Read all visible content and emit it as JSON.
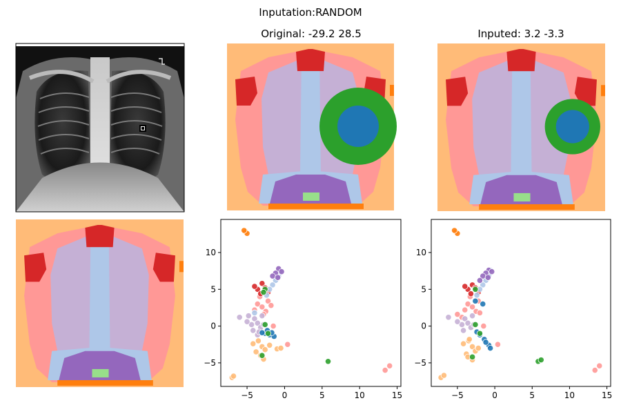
{
  "figure": {
    "suptitle": "Inputation:RANDOM",
    "titles": {
      "xray": "",
      "original": "Original: -29.2 28.5",
      "imputed": "Inputed: 3.2 -3.3",
      "segmentation": ""
    }
  },
  "colors": {
    "bg_peach": "#ffbb78",
    "pink": "#ff9896",
    "red": "#d62728",
    "lavender": "#c5b0d5",
    "lightblue": "#aec7e8",
    "purple": "#9467bd",
    "lightgreen": "#98df8a",
    "orange": "#ff7f0e",
    "green": "#2ca02c",
    "blue": "#1f77b4"
  },
  "chart_data": [
    {
      "type": "heatmap",
      "title": "Original: -29.2 28.5",
      "description_label": "segmentation map with highlighted regions",
      "blob_center_data": [
        -29.2,
        28.5
      ]
    },
    {
      "type": "heatmap",
      "title": "Inputed: 3.2 -3.3",
      "blob_center_data": [
        3.2,
        -3.3
      ]
    },
    {
      "type": "scatter",
      "panel": "original",
      "xticks": [
        -5,
        0,
        5,
        10,
        15
      ],
      "yticks": [
        -5,
        0,
        5,
        10
      ],
      "xlim": [
        -8.5,
        15.5
      ],
      "ylim": [
        -8.2,
        14.5
      ],
      "series": [
        {
          "name": "orange",
          "color": "#ff7f0e",
          "points": [
            [
              -5.2,
              12.8
            ],
            [
              -5.0,
              12.6
            ],
            [
              -5.4,
              13.0
            ]
          ]
        },
        {
          "name": "peach",
          "color": "#ffbb78",
          "points": [
            [
              -7.0,
              -7.0
            ],
            [
              -6.8,
              -6.8
            ],
            [
              -3.5,
              -2.0
            ],
            [
              -3.0,
              -2.8
            ],
            [
              -2.6,
              -3.2
            ],
            [
              -3.8,
              -3.5
            ],
            [
              -3.2,
              -4.0
            ],
            [
              -1.0,
              -3.1
            ],
            [
              -0.5,
              -3.0
            ],
            [
              -2.8,
              -4.5
            ],
            [
              -4.2,
              -2.4
            ],
            [
              -2.0,
              -2.6
            ]
          ]
        },
        {
          "name": "pink",
          "color": "#ff9896",
          "points": [
            [
              -3.6,
              3.0
            ],
            [
              -3.0,
              2.6
            ],
            [
              -2.5,
              2.0
            ],
            [
              -4.0,
              2.2
            ],
            [
              -2.2,
              3.4
            ],
            [
              -3.3,
              4.0
            ],
            [
              -1.8,
              2.8
            ],
            [
              -2.8,
              1.6
            ],
            [
              13.4,
              -6.0
            ],
            [
              14.0,
              -5.4
            ],
            [
              0.4,
              -2.5
            ],
            [
              -3.5,
              -1.0
            ],
            [
              -1.5,
              0.0
            ]
          ]
        },
        {
          "name": "red",
          "color": "#d62728",
          "points": [
            [
              -3.0,
              5.8
            ],
            [
              -2.6,
              5.2
            ],
            [
              -3.6,
              5.0
            ],
            [
              -2.2,
              4.6
            ],
            [
              -3.2,
              4.4
            ],
            [
              -4.0,
              5.4
            ]
          ]
        },
        {
          "name": "lavender",
          "color": "#c5b0d5",
          "points": [
            [
              -4.0,
              1.0
            ],
            [
              -3.6,
              0.4
            ],
            [
              -3.2,
              -0.2
            ],
            [
              -4.4,
              0.2
            ],
            [
              -3.0,
              1.4
            ],
            [
              -4.2,
              -0.6
            ],
            [
              -3.6,
              -1.2
            ],
            [
              -5.0,
              0.6
            ],
            [
              -2.8,
              0.2
            ],
            [
              -4.8,
              1.4
            ],
            [
              -6.0,
              1.2
            ],
            [
              -3.4,
              -0.8
            ]
          ]
        },
        {
          "name": "lightblue",
          "color": "#aec7e8",
          "points": [
            [
              -1.2,
              6.2
            ],
            [
              -0.8,
              6.8
            ],
            [
              -1.6,
              5.6
            ],
            [
              -2.0,
              5.0
            ],
            [
              -0.6,
              7.4
            ],
            [
              -2.4,
              4.2
            ],
            [
              -4.0,
              1.8
            ]
          ]
        },
        {
          "name": "purple",
          "color": "#9467bd",
          "points": [
            [
              -0.8,
              7.8
            ],
            [
              -1.2,
              7.2
            ],
            [
              -0.4,
              7.4
            ],
            [
              -1.6,
              6.8
            ],
            [
              -0.9,
              6.6
            ]
          ]
        },
        {
          "name": "blue",
          "color": "#1f77b4",
          "points": [
            [
              -2.6,
              -1.0
            ],
            [
              -2.0,
              -1.2
            ],
            [
              -1.4,
              -1.4
            ],
            [
              -2.3,
              -0.6
            ],
            [
              -1.7,
              -0.9
            ],
            [
              -3.0,
              -0.9
            ]
          ]
        },
        {
          "name": "green",
          "color": "#2ca02c",
          "points": [
            [
              -2.6,
              5.0
            ],
            [
              -2.8,
              4.6
            ],
            [
              -2.6,
              0.2
            ],
            [
              -3.0,
              -4.0
            ],
            [
              5.8,
              -4.8
            ],
            [
              -2.2,
              -1.0
            ]
          ]
        }
      ]
    },
    {
      "type": "scatter",
      "panel": "imputed",
      "xticks": [
        -5,
        0,
        5,
        10,
        15
      ],
      "yticks": [
        -5,
        0,
        5,
        10
      ],
      "xlim": [
        -8.5,
        15.5
      ],
      "ylim": [
        -8.2,
        14.5
      ],
      "series": [
        {
          "name": "orange",
          "color": "#ff7f0e",
          "points": [
            [
              -5.2,
              12.8
            ],
            [
              -5.0,
              12.6
            ],
            [
              -5.4,
              13.0
            ]
          ]
        },
        {
          "name": "peach",
          "color": "#ffbb78",
          "points": [
            [
              -7.2,
              -7.0
            ],
            [
              -6.8,
              -6.7
            ],
            [
              -3.5,
              -2.0
            ],
            [
              -3.0,
              -2.8
            ],
            [
              -2.6,
              -3.4
            ],
            [
              -3.8,
              -3.8
            ],
            [
              -3.0,
              -4.6
            ],
            [
              -4.2,
              -2.4
            ],
            [
              -3.4,
              -1.8
            ],
            [
              -2.2,
              -3.0
            ],
            [
              -3.6,
              -4.2
            ]
          ]
        },
        {
          "name": "pink",
          "color": "#ff9896",
          "points": [
            [
              -3.6,
              3.0
            ],
            [
              -3.0,
              2.6
            ],
            [
              -2.5,
              2.0
            ],
            [
              -4.0,
              2.2
            ],
            [
              -2.2,
              3.4
            ],
            [
              -3.3,
              4.0
            ],
            [
              -2.0,
              1.8
            ],
            [
              -4.4,
              1.2
            ],
            [
              13.4,
              -6.0
            ],
            [
              14.0,
              -5.4
            ],
            [
              0.4,
              -2.5
            ],
            [
              -1.5,
              0.0
            ],
            [
              -5.0,
              1.6
            ]
          ]
        },
        {
          "name": "red",
          "color": "#d62728",
          "points": [
            [
              -3.0,
              5.6
            ],
            [
              -2.6,
              5.2
            ],
            [
              -3.6,
              5.0
            ],
            [
              -2.2,
              4.6
            ],
            [
              -3.2,
              4.4
            ],
            [
              -4.0,
              5.4
            ]
          ]
        },
        {
          "name": "lavender",
          "color": "#c5b0d5",
          "points": [
            [
              -4.0,
              1.0
            ],
            [
              -3.6,
              0.4
            ],
            [
              -3.2,
              -0.2
            ],
            [
              -4.4,
              0.2
            ],
            [
              -3.0,
              1.4
            ],
            [
              -4.2,
              -0.6
            ],
            [
              -5.0,
              0.6
            ],
            [
              -6.2,
              1.2
            ],
            [
              -2.8,
              0.2
            ]
          ]
        },
        {
          "name": "lightblue",
          "color": "#aec7e8",
          "points": [
            [
              -1.2,
              6.2
            ],
            [
              -0.8,
              6.8
            ],
            [
              -1.6,
              5.6
            ],
            [
              -2.0,
              5.0
            ],
            [
              -0.6,
              7.6
            ],
            [
              -2.4,
              4.2
            ]
          ]
        },
        {
          "name": "purple",
          "color": "#9467bd",
          "points": [
            [
              -0.8,
              7.6
            ],
            [
              -1.2,
              7.2
            ],
            [
              -0.4,
              7.4
            ],
            [
              -1.6,
              6.8
            ],
            [
              -0.9,
              6.6
            ],
            [
              -2.0,
              6.2
            ]
          ]
        },
        {
          "name": "blue",
          "color": "#1f77b4",
          "points": [
            [
              -2.6,
              3.4
            ],
            [
              -1.6,
              3.0
            ],
            [
              -2.0,
              -1.2
            ],
            [
              -1.4,
              -1.8
            ],
            [
              -0.8,
              -2.6
            ],
            [
              -0.6,
              -3.0
            ],
            [
              -1.2,
              -2.2
            ],
            [
              -2.4,
              -0.8
            ]
          ]
        },
        {
          "name": "green",
          "color": "#2ca02c",
          "points": [
            [
              -2.6,
              5.0
            ],
            [
              -2.6,
              0.2
            ],
            [
              -3.0,
              -4.2
            ],
            [
              5.8,
              -4.8
            ],
            [
              6.2,
              -4.6
            ],
            [
              -2.0,
              -1.0
            ]
          ]
        }
      ]
    }
  ]
}
